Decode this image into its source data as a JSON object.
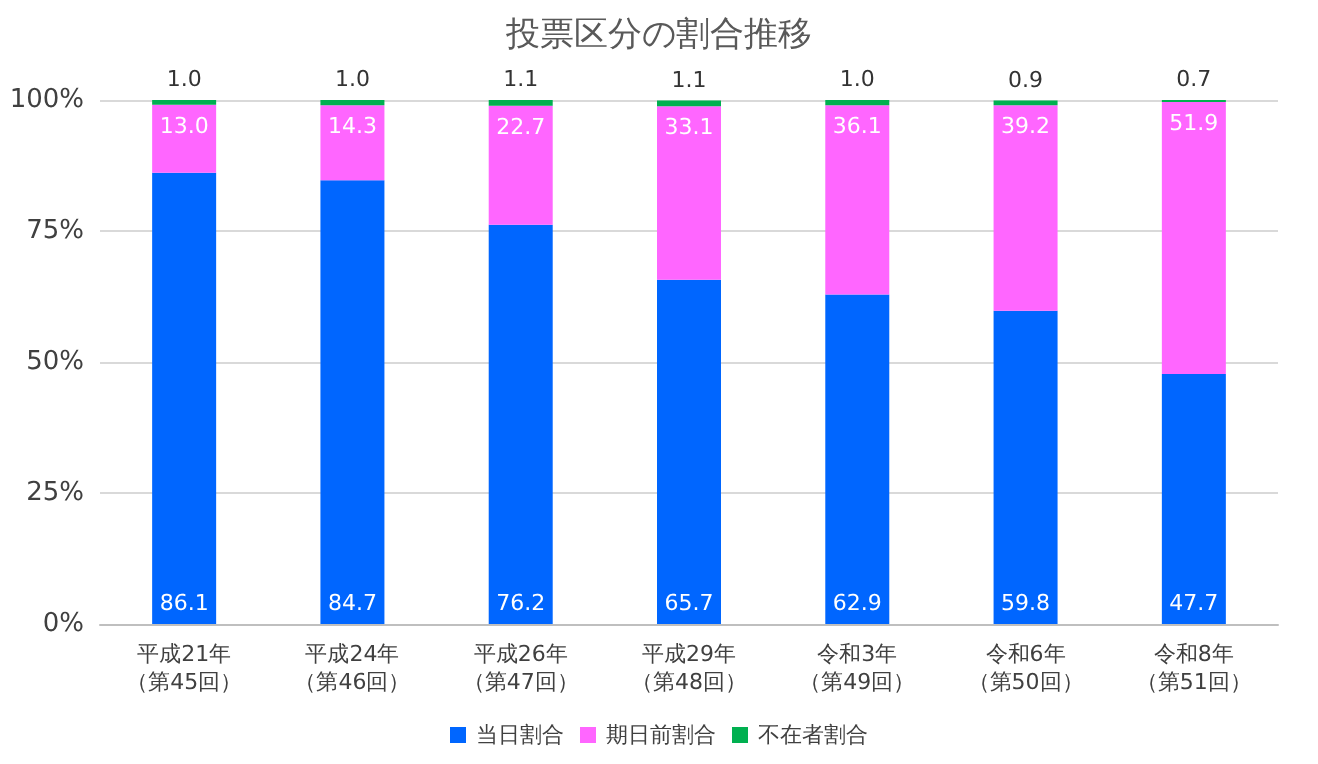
{
  "chart_data": {
    "type": "bar",
    "title": "投票区分の割合推移",
    "stacked": true,
    "grid": "y",
    "legend": "bottom",
    "categories": [
      "平成21年（第45回）",
      "平成24年（第46回）",
      "平成26年（第47回）",
      "平成29年（第48回）",
      "令和3年（第49回）",
      "令和6年（第50回）",
      "令和8年（第51回）"
    ],
    "ylim": [
      0,
      100
    ],
    "yticks": [
      {
        "value": 0,
        "label": "0%"
      },
      {
        "value": 25,
        "label": "25%"
      },
      {
        "value": 50,
        "label": "50%"
      },
      {
        "value": 75,
        "label": "75%"
      },
      {
        "value": 100,
        "label": "100%"
      }
    ],
    "series": [
      {
        "name": "当日割合",
        "color": "#0066ff",
        "values": [
          86.1,
          84.7,
          76.2,
          65.7,
          62.9,
          59.8,
          47.7
        ],
        "value_labels": [
          "86.1",
          "84.7",
          "76.2",
          "65.7",
          "62.9",
          "59.8",
          "47.7"
        ]
      },
      {
        "name": "期日前割合",
        "color": "#ff66ff",
        "values": [
          13.0,
          14.3,
          22.7,
          33.1,
          36.1,
          39.2,
          51.9
        ],
        "value_labels": [
          "13.0",
          "14.3",
          "22.7",
          "33.1",
          "36.1",
          "39.2",
          "51.9"
        ]
      },
      {
        "name": "不在者割合",
        "color": "#00b050",
        "values": [
          1.0,
          1.0,
          1.1,
          1.1,
          1.0,
          0.9,
          0.7
        ],
        "value_labels": [
          "1.0",
          "1.0",
          "1.1",
          "1.1",
          "1.0",
          "0.9",
          "0.7"
        ]
      }
    ]
  }
}
